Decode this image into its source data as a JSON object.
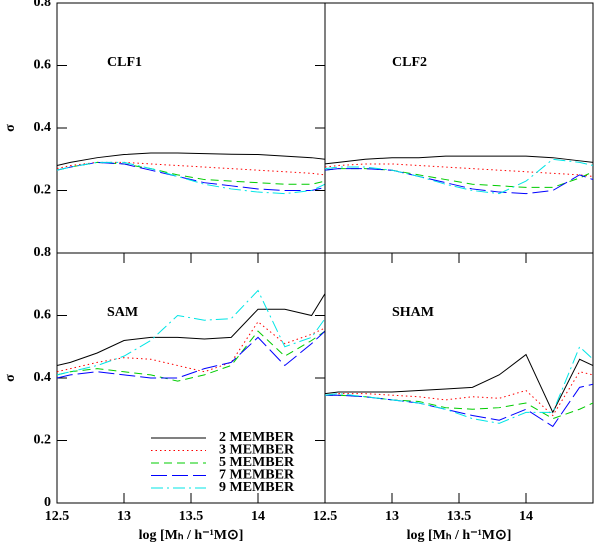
{
  "chart_data": [
    {
      "type": "line",
      "annotation": "CLF1",
      "ylabel": "σ",
      "x": [
        12.5,
        12.6,
        12.8,
        13.0,
        13.2,
        13.4,
        13.6,
        13.8,
        14.0,
        14.2,
        14.4,
        14.5
      ],
      "xlim": [
        12.5,
        14.5
      ],
      "ylim": [
        0,
        0.8
      ],
      "yticks": [
        0.2,
        0.4,
        0.6,
        0.8
      ],
      "series": [
        {
          "color": "#000000",
          "linestyle": "solid",
          "values": [
            0.28,
            0.29,
            0.305,
            0.315,
            0.32,
            0.32,
            0.318,
            0.316,
            0.315,
            0.31,
            0.305,
            0.3
          ]
        },
        {
          "color": "#ff0000",
          "linestyle": "dotted",
          "values": [
            0.27,
            0.28,
            0.29,
            0.29,
            0.285,
            0.28,
            0.275,
            0.27,
            0.265,
            0.26,
            0.255,
            0.25
          ]
        },
        {
          "color": "#00cc00",
          "linestyle": "dashed",
          "values": [
            0.265,
            0.275,
            0.29,
            0.285,
            0.27,
            0.25,
            0.235,
            0.23,
            0.225,
            0.22,
            0.22,
            0.23
          ]
        },
        {
          "color": "#0000ff",
          "linestyle": "longdash",
          "values": [
            0.265,
            0.275,
            0.29,
            0.285,
            0.265,
            0.245,
            0.225,
            0.215,
            0.205,
            0.2,
            0.2,
            0.21
          ]
        },
        {
          "color": "#00e5e5",
          "linestyle": "dashdot",
          "values": [
            0.265,
            0.275,
            0.29,
            0.29,
            0.27,
            0.245,
            0.22,
            0.205,
            0.195,
            0.19,
            0.2,
            0.22
          ]
        }
      ]
    },
    {
      "type": "line",
      "annotation": "CLF2",
      "x": [
        12.5,
        12.6,
        12.8,
        13.0,
        13.2,
        13.4,
        13.6,
        13.8,
        14.0,
        14.2,
        14.4,
        14.5
      ],
      "xlim": [
        12.5,
        14.5
      ],
      "ylim": [
        0,
        0.8
      ],
      "series": [
        {
          "color": "#000000",
          "linestyle": "solid",
          "values": [
            0.285,
            0.29,
            0.3,
            0.305,
            0.305,
            0.31,
            0.31,
            0.31,
            0.31,
            0.305,
            0.295,
            0.29
          ]
        },
        {
          "color": "#ff0000",
          "linestyle": "dotted",
          "values": [
            0.275,
            0.28,
            0.285,
            0.285,
            0.28,
            0.275,
            0.27,
            0.265,
            0.26,
            0.255,
            0.25,
            0.245
          ]
        },
        {
          "color": "#00cc00",
          "linestyle": "dashed",
          "values": [
            0.265,
            0.27,
            0.27,
            0.265,
            0.25,
            0.235,
            0.22,
            0.215,
            0.21,
            0.21,
            0.24,
            0.26
          ]
        },
        {
          "color": "#0000ff",
          "linestyle": "longdash",
          "values": [
            0.265,
            0.27,
            0.27,
            0.265,
            0.245,
            0.225,
            0.205,
            0.195,
            0.19,
            0.2,
            0.25,
            0.235
          ]
        },
        {
          "color": "#00e5e5",
          "linestyle": "dashdot",
          "values": [
            0.27,
            0.275,
            0.275,
            0.265,
            0.245,
            0.22,
            0.2,
            0.19,
            0.23,
            0.3,
            0.29,
            0.28
          ]
        }
      ]
    },
    {
      "type": "line",
      "annotation": "SAM",
      "ylabel": "σ",
      "xlabel": "log [Mₕ / h⁻¹M⊙]",
      "legend": "lower center",
      "x": [
        12.5,
        12.6,
        12.8,
        13.0,
        13.2,
        13.4,
        13.6,
        13.8,
        14.0,
        14.2,
        14.4,
        14.5
      ],
      "xlim": [
        12.5,
        14.5
      ],
      "ylim": [
        0,
        0.8
      ],
      "xticks": [
        12.5,
        13,
        13.5,
        14
      ],
      "yticks": [
        0,
        0.2,
        0.4,
        0.6,
        0.8
      ],
      "series": [
        {
          "name": "2 MEMBER",
          "color": "#000000",
          "linestyle": "solid",
          "values": [
            0.44,
            0.45,
            0.48,
            0.52,
            0.53,
            0.53,
            0.525,
            0.53,
            0.62,
            0.62,
            0.6,
            0.67
          ]
        },
        {
          "name": "3 MEMBER",
          "color": "#ff0000",
          "linestyle": "dotted",
          "values": [
            0.42,
            0.43,
            0.45,
            0.465,
            0.46,
            0.44,
            0.42,
            0.45,
            0.58,
            0.51,
            0.54,
            0.56
          ]
        },
        {
          "name": "5 MEMBER",
          "color": "#00cc00",
          "linestyle": "dashed",
          "values": [
            0.41,
            0.42,
            0.43,
            0.42,
            0.41,
            0.39,
            0.41,
            0.44,
            0.55,
            0.47,
            0.52,
            0.55
          ]
        },
        {
          "name": "7 MEMBER",
          "color": "#0000ff",
          "linestyle": "longdash",
          "values": [
            0.4,
            0.41,
            0.42,
            0.41,
            0.4,
            0.4,
            0.43,
            0.45,
            0.53,
            0.44,
            0.51,
            0.55
          ]
        },
        {
          "name": "9 MEMBER",
          "color": "#00e5e5",
          "linestyle": "dashdot",
          "values": [
            0.41,
            0.42,
            0.44,
            0.47,
            0.52,
            0.6,
            0.585,
            0.59,
            0.68,
            0.5,
            0.53,
            0.59
          ]
        }
      ]
    },
    {
      "type": "line",
      "annotation": "SHAM",
      "xlabel": "log [Mₕ / h⁻¹M⊙]",
      "x": [
        12.5,
        12.6,
        12.8,
        13.0,
        13.2,
        13.4,
        13.6,
        13.8,
        14.0,
        14.2,
        14.4,
        14.5
      ],
      "xlim": [
        12.5,
        14.5
      ],
      "ylim": [
        0,
        0.8
      ],
      "xticks": [
        12.5,
        13,
        13.5,
        14
      ],
      "series": [
        {
          "color": "#000000",
          "linestyle": "solid",
          "values": [
            0.35,
            0.355,
            0.355,
            0.355,
            0.36,
            0.365,
            0.37,
            0.41,
            0.475,
            0.29,
            0.46,
            0.44
          ]
        },
        {
          "color": "#ff0000",
          "linestyle": "dotted",
          "values": [
            0.345,
            0.35,
            0.35,
            0.345,
            0.34,
            0.33,
            0.34,
            0.335,
            0.36,
            0.28,
            0.42,
            0.41
          ]
        },
        {
          "color": "#00cc00",
          "linestyle": "dashed",
          "values": [
            0.345,
            0.345,
            0.34,
            0.33,
            0.325,
            0.305,
            0.3,
            0.305,
            0.32,
            0.27,
            0.3,
            0.32
          ]
        },
        {
          "color": "#0000ff",
          "linestyle": "longdash",
          "values": [
            0.345,
            0.345,
            0.34,
            0.33,
            0.32,
            0.3,
            0.28,
            0.265,
            0.3,
            0.245,
            0.37,
            0.38
          ]
        },
        {
          "color": "#00e5e5",
          "linestyle": "dashdot",
          "values": [
            0.345,
            0.35,
            0.34,
            0.33,
            0.32,
            0.3,
            0.27,
            0.255,
            0.29,
            0.29,
            0.5,
            0.46
          ]
        }
      ]
    }
  ]
}
